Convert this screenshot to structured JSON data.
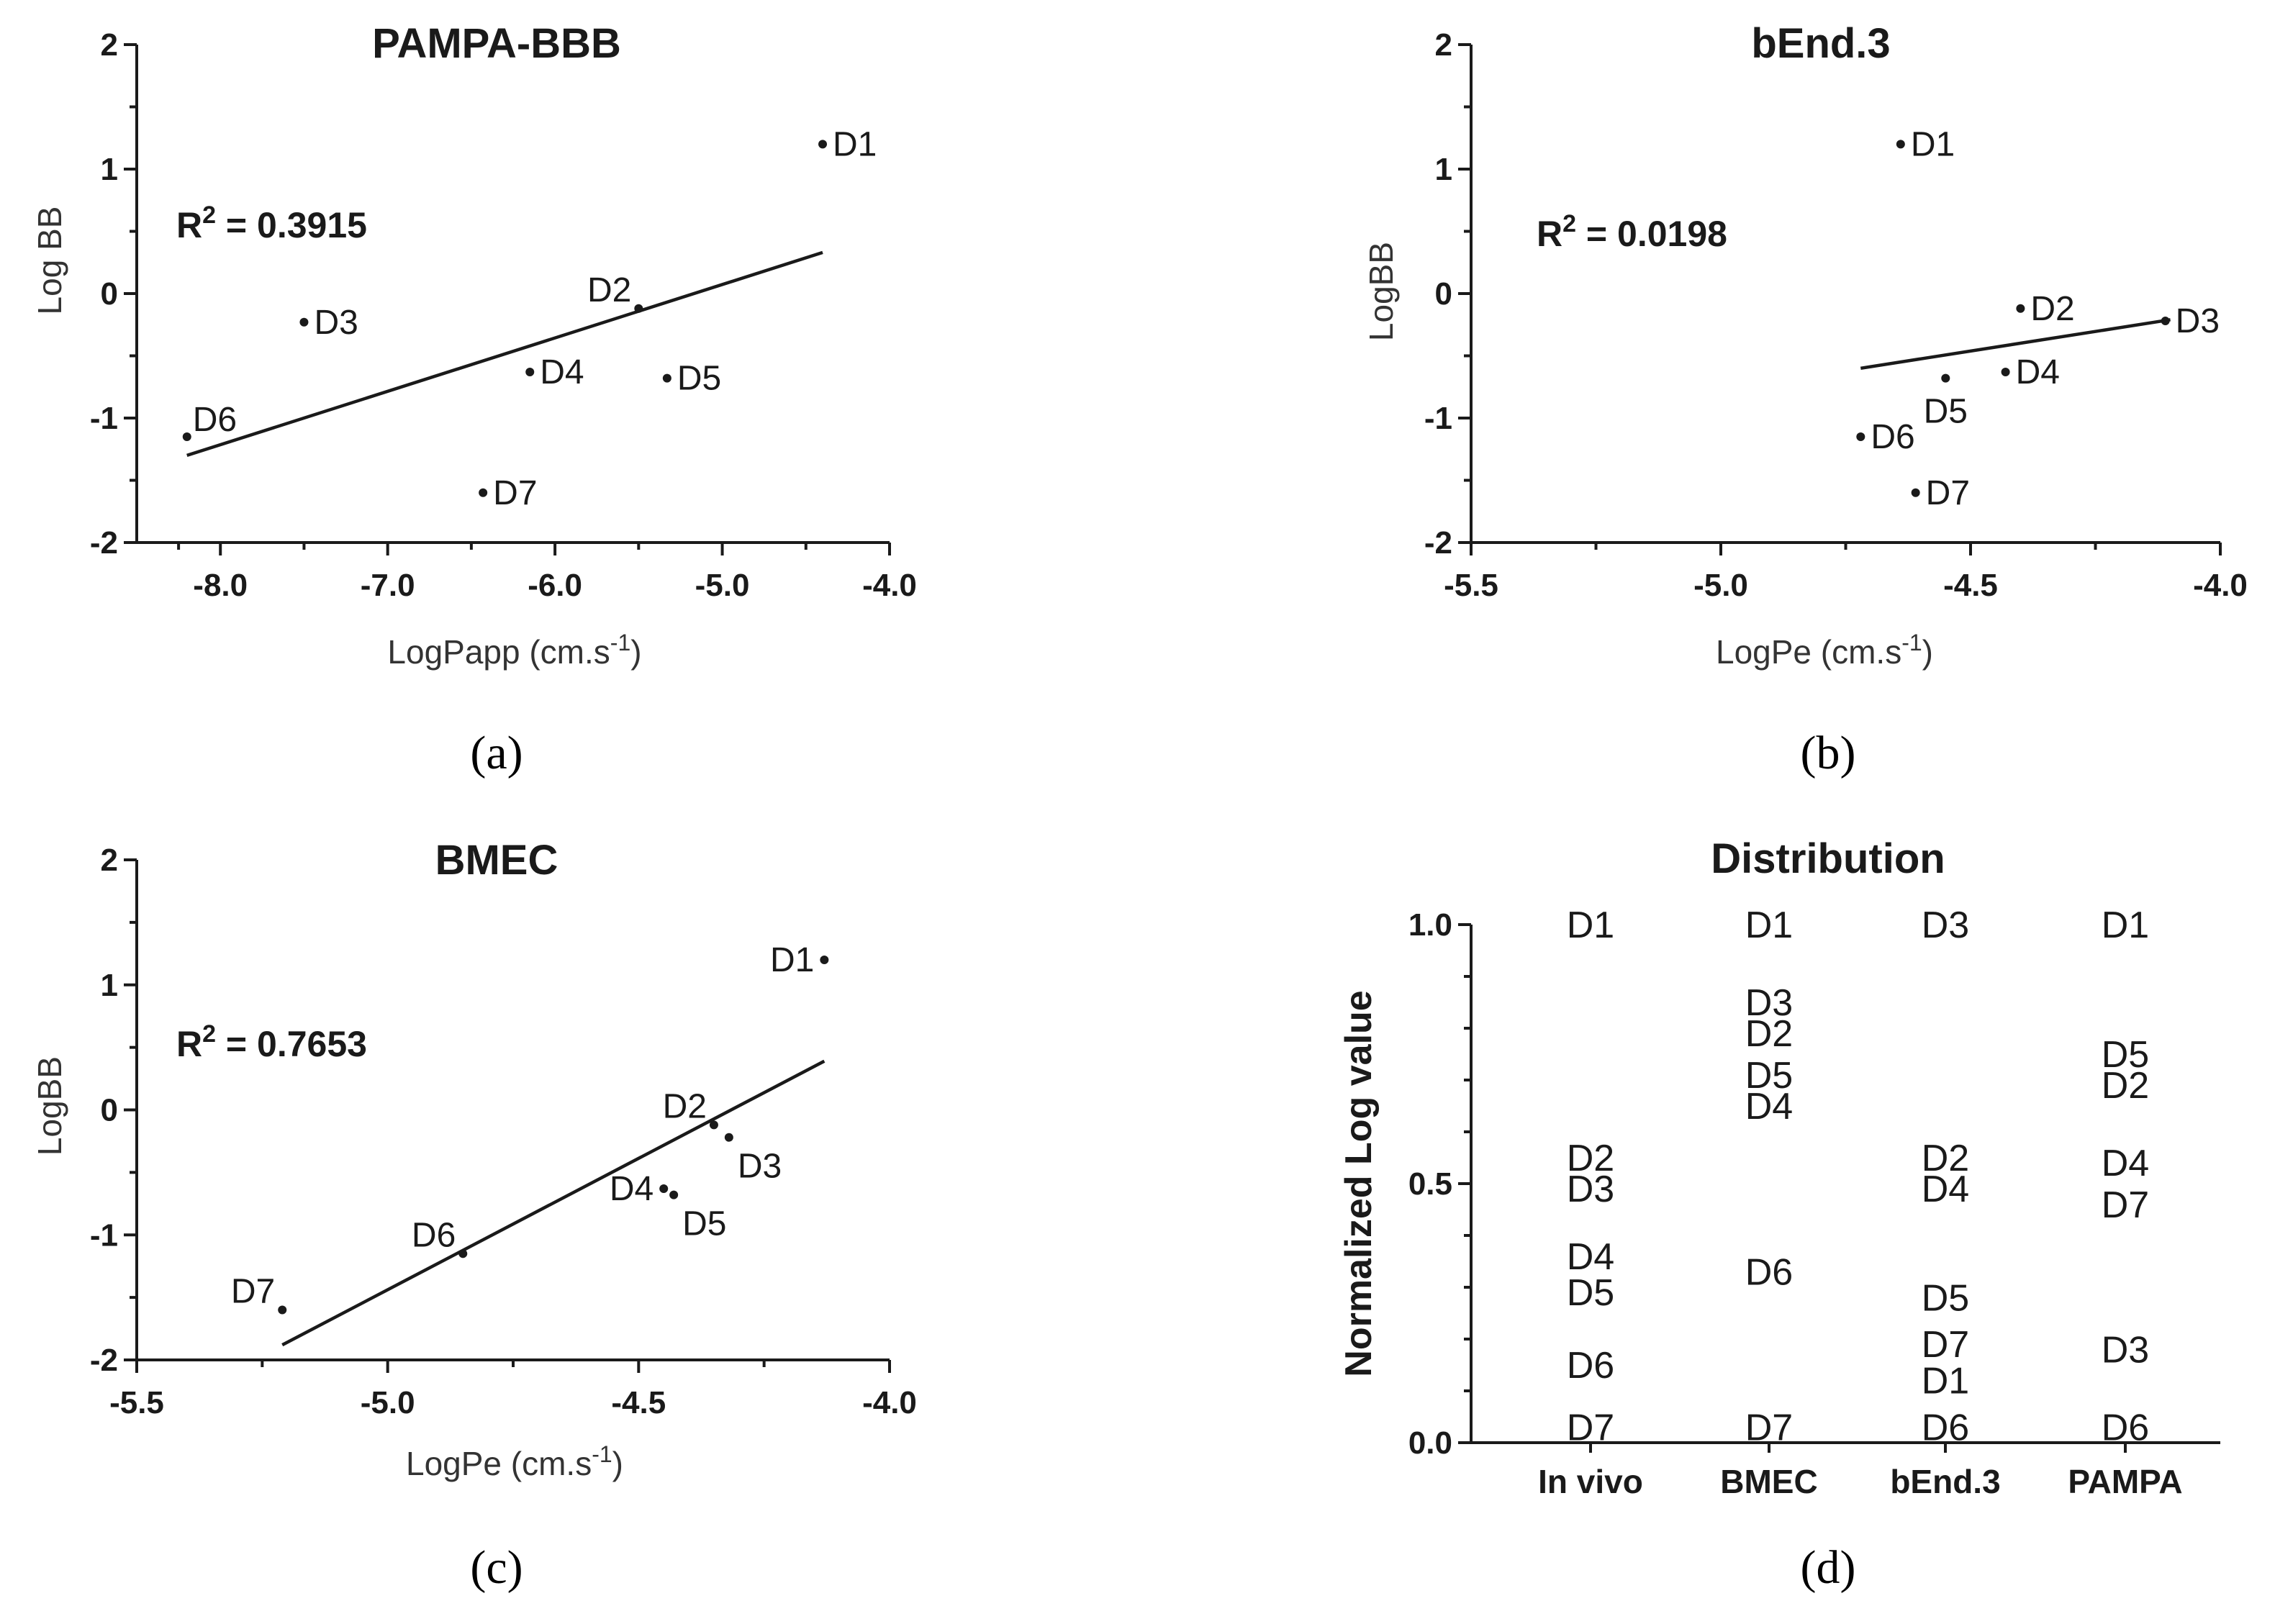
{
  "chart_data": [
    {
      "type": "scatter",
      "panel_label": "(a)",
      "title": "PAMPA-BBB",
      "xlabel": "LogPapp (cm.s",
      "xlabel_sup": "-1",
      "xlabel_end": ")",
      "ylabel": "Log BB",
      "r2_label": "R",
      "r2_sup": "2",
      "r2_value": " = 0.3915",
      "xlim": [
        -8.5,
        -4.0
      ],
      "ylim": [
        -2,
        2
      ],
      "x_ticks": [
        -8.0,
        -7.0,
        -6.0,
        -5.0,
        -4.0
      ],
      "x_tick_labels": [
        "-8.0",
        "-7.0",
        "-6.0",
        "-5.0",
        "-4.0"
      ],
      "y_ticks": [
        -2,
        -1,
        0,
        1,
        2
      ],
      "y_tick_labels": [
        "-2",
        "-1",
        "0",
        "1",
        "2"
      ],
      "points": [
        {
          "label": "D1",
          "x": -4.4,
          "y": 1.2,
          "pos": "right"
        },
        {
          "label": "D2",
          "x": -5.5,
          "y": -0.12,
          "pos": "upleft"
        },
        {
          "label": "D3",
          "x": -7.5,
          "y": -0.23,
          "pos": "right"
        },
        {
          "label": "D4",
          "x": -6.15,
          "y": -0.63,
          "pos": "right"
        },
        {
          "label": "D5",
          "x": -5.33,
          "y": -0.68,
          "pos": "right"
        },
        {
          "label": "D6",
          "x": -8.2,
          "y": -1.15,
          "pos": "upright"
        },
        {
          "label": "D7",
          "x": -6.43,
          "y": -1.6,
          "pos": "right"
        }
      ],
      "fit_line": [
        [
          -8.2,
          -1.3
        ],
        [
          -4.4,
          0.33
        ]
      ]
    },
    {
      "type": "scatter",
      "panel_label": "(b)",
      "title": "bEnd.3",
      "xlabel": "LogPe (cm.s",
      "xlabel_sup": "-1",
      "xlabel_end": ")",
      "ylabel": "LogBB",
      "r2_label": "R",
      "r2_sup": "2",
      "r2_value": " = 0.0198",
      "xlim": [
        -5.5,
        -4.0
      ],
      "ylim": [
        -2,
        2
      ],
      "x_ticks": [
        -5.5,
        -5.0,
        -4.5,
        -4.0
      ],
      "x_tick_labels": [
        "-5.5",
        "-5.0",
        "-4.5",
        "-4.0"
      ],
      "y_ticks": [
        -2,
        -1,
        0,
        1,
        2
      ],
      "y_tick_labels": [
        "-2",
        "-1",
        "0",
        "1",
        "2"
      ],
      "points": [
        {
          "label": "D1",
          "x": -4.64,
          "y": 1.2,
          "pos": "right"
        },
        {
          "label": "D2",
          "x": -4.4,
          "y": -0.12,
          "pos": "right"
        },
        {
          "label": "D3",
          "x": -4.11,
          "y": -0.22,
          "pos": "right"
        },
        {
          "label": "D4",
          "x": -4.43,
          "y": -0.63,
          "pos": "right"
        },
        {
          "label": "D5",
          "x": -4.55,
          "y": -0.68,
          "pos": "below"
        },
        {
          "label": "D6",
          "x": -4.72,
          "y": -1.15,
          "pos": "right"
        },
        {
          "label": "D7",
          "x": -4.61,
          "y": -1.6,
          "pos": "right"
        }
      ],
      "fit_line": [
        [
          -4.72,
          -0.6
        ],
        [
          -4.1,
          -0.21
        ]
      ]
    },
    {
      "type": "scatter",
      "panel_label": "(c)",
      "title": "BMEC",
      "xlabel": "LogPe (cm.s",
      "xlabel_sup": "-1",
      "xlabel_end": ")",
      "ylabel": "LogBB",
      "r2_label": "R",
      "r2_sup": "2",
      "r2_value": " = 0.7653",
      "xlim": [
        -5.5,
        -4.0
      ],
      "ylim": [
        -2,
        2
      ],
      "x_ticks": [
        -5.5,
        -5.0,
        -4.5,
        -4.0
      ],
      "x_tick_labels": [
        "-5.5",
        "-5.0",
        "-4.5",
        "-4.0"
      ],
      "y_ticks": [
        -2,
        -1,
        0,
        1,
        2
      ],
      "y_tick_labels": [
        "-2",
        "-1",
        "0",
        "1",
        "2"
      ],
      "points": [
        {
          "label": "D1",
          "x": -4.13,
          "y": 1.2,
          "pos": "left"
        },
        {
          "label": "D2",
          "x": -4.35,
          "y": -0.12,
          "pos": "upleft"
        },
        {
          "label": "D3",
          "x": -4.32,
          "y": -0.22,
          "pos": "belowright"
        },
        {
          "label": "D4",
          "x": -4.45,
          "y": -0.63,
          "pos": "left"
        },
        {
          "label": "D5",
          "x": -4.43,
          "y": -0.68,
          "pos": "belowright"
        },
        {
          "label": "D6",
          "x": -4.85,
          "y": -1.15,
          "pos": "upleft"
        },
        {
          "label": "D7",
          "x": -5.21,
          "y": -1.6,
          "pos": "upleft"
        }
      ],
      "fit_line": [
        [
          -5.21,
          -1.88
        ],
        [
          -4.13,
          0.39
        ]
      ]
    },
    {
      "type": "table",
      "panel_label": "(d)",
      "title": "Distribution",
      "ylabel": "Normalized Log value",
      "ylim": [
        0.0,
        1.0
      ],
      "y_ticks": [
        0.0,
        0.5,
        1.0
      ],
      "y_tick_labels": [
        "0.0",
        "0.5",
        "1.0"
      ],
      "categories": [
        "In vivo",
        "BMEC",
        "bEnd.3",
        "PAMPA"
      ],
      "entries": [
        {
          "category": "In vivo",
          "label": "D1",
          "value": 1.0
        },
        {
          "category": "In vivo",
          "label": "D2",
          "value": 0.55
        },
        {
          "category": "In vivo",
          "label": "D3",
          "value": 0.49
        },
        {
          "category": "In vivo",
          "label": "D4",
          "value": 0.36
        },
        {
          "category": "In vivo",
          "label": "D5",
          "value": 0.29
        },
        {
          "category": "In vivo",
          "label": "D6",
          "value": 0.15
        },
        {
          "category": "In vivo",
          "label": "D7",
          "value": 0.03
        },
        {
          "category": "BMEC",
          "label": "D1",
          "value": 1.0
        },
        {
          "category": "BMEC",
          "label": "D3",
          "value": 0.85
        },
        {
          "category": "BMEC",
          "label": "D2",
          "value": 0.79
        },
        {
          "category": "BMEC",
          "label": "D5",
          "value": 0.71
        },
        {
          "category": "BMEC",
          "label": "D4",
          "value": 0.65
        },
        {
          "category": "BMEC",
          "label": "D6",
          "value": 0.33
        },
        {
          "category": "BMEC",
          "label": "D7",
          "value": 0.03
        },
        {
          "category": "bEnd.3",
          "label": "D3",
          "value": 1.0
        },
        {
          "category": "bEnd.3",
          "label": "D2",
          "value": 0.55
        },
        {
          "category": "bEnd.3",
          "label": "D4",
          "value": 0.49
        },
        {
          "category": "bEnd.3",
          "label": "D5",
          "value": 0.28
        },
        {
          "category": "bEnd.3",
          "label": "D7",
          "value": 0.19
        },
        {
          "category": "bEnd.3",
          "label": "D1",
          "value": 0.12
        },
        {
          "category": "bEnd.3",
          "label": "D6",
          "value": 0.03
        },
        {
          "category": "PAMPA",
          "label": "D1",
          "value": 1.0
        },
        {
          "category": "PAMPA",
          "label": "D5",
          "value": 0.75
        },
        {
          "category": "PAMPA",
          "label": "D2",
          "value": 0.69
        },
        {
          "category": "PAMPA",
          "label": "D4",
          "value": 0.54
        },
        {
          "category": "PAMPA",
          "label": "D7",
          "value": 0.46
        },
        {
          "category": "PAMPA",
          "label": "D3",
          "value": 0.18
        },
        {
          "category": "PAMPA",
          "label": "D6",
          "value": 0.03
        }
      ]
    }
  ]
}
